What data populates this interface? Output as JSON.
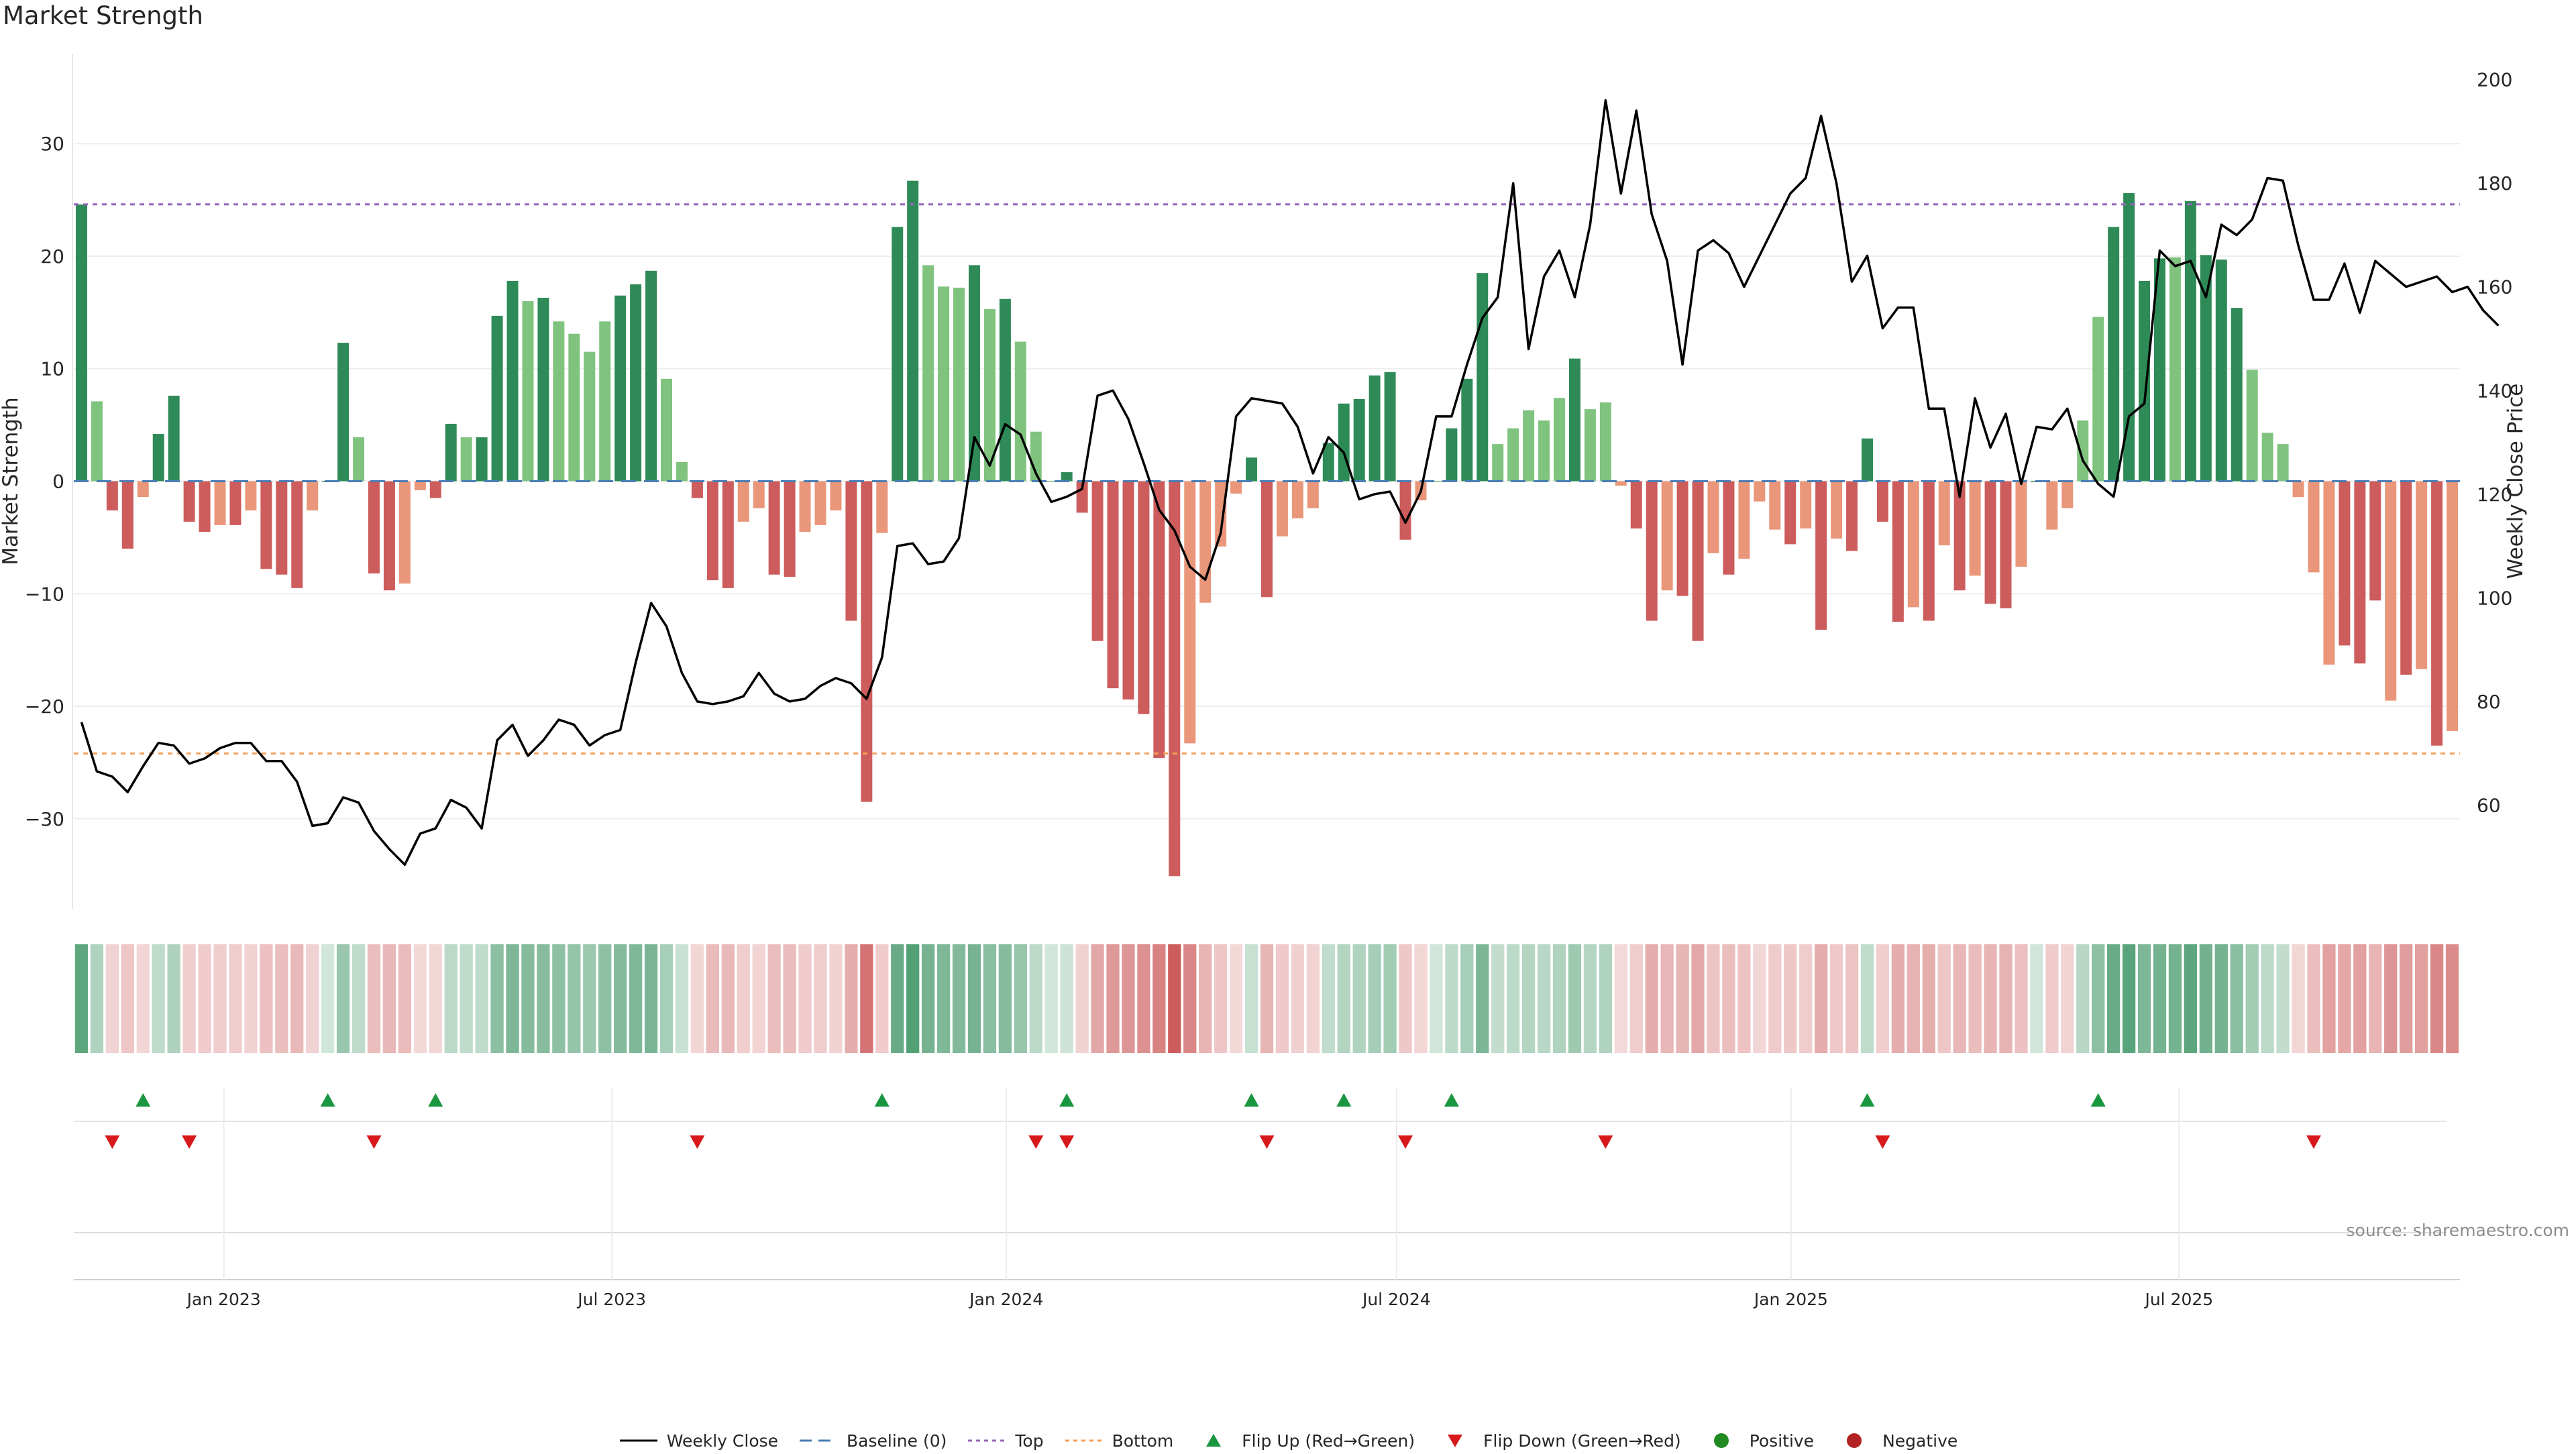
{
  "title": "Market Strength",
  "source": "source: sharemaestro.com",
  "colors": {
    "pos_strong": "#2e8b57",
    "pos_light": "#7fc37f",
    "neg_strong": "#cd5c5c",
    "neg_light": "#e9967a",
    "price_line": "#000000",
    "baseline": "#4a7db5",
    "top": "#9467bd",
    "bottom": "#f5a05a",
    "flip_up": "#1a9641",
    "flip_down": "#d7191c",
    "positive": "#228b22",
    "negative": "#b22222"
  },
  "legend": [
    {
      "label": "Weekly Close",
      "kind": "line"
    },
    {
      "label": "Baseline (0)",
      "kind": "baseline"
    },
    {
      "label": "Top",
      "kind": "top"
    },
    {
      "label": "Bottom",
      "kind": "bottom"
    },
    {
      "label": "Flip Up (Red→Green)",
      "kind": "up"
    },
    {
      "label": "Flip Down (Green→Red)",
      "kind": "down"
    },
    {
      "label": "Positive",
      "kind": "pos"
    },
    {
      "label": "Negative",
      "kind": "neg"
    }
  ],
  "chart_data": {
    "type": "bar",
    "title": "Market Strength",
    "ylabel": "Market Strength",
    "y2label": "Weekly Close Price",
    "ylim": [
      -38,
      38
    ],
    "y2lim": [
      40,
      205
    ],
    "yticks": [
      -30,
      -20,
      -10,
      0,
      10,
      20,
      30
    ],
    "yticklabels": [
      "−30",
      "−20",
      "−10",
      "0",
      "10",
      "20",
      "30"
    ],
    "y2ticks": [
      60,
      80,
      100,
      120,
      140,
      160,
      180,
      200
    ],
    "x_start": "2022-10-23",
    "x_end": "2025-11-09",
    "xticks": [
      "2023-01-01",
      "2023-07-01",
      "2024-01-01",
      "2024-07-01",
      "2025-01-01",
      "2025-07-01"
    ],
    "xticklabels": [
      "Jan 2023",
      "Jul 2023",
      "Jan 2024",
      "Jul 2024",
      "Jan 2025",
      "Jul 2025"
    ],
    "top_level": 24.6,
    "bottom_level": -24.2,
    "baseline": 0,
    "strength": [
      24.6,
      7.1,
      -2.6,
      -6,
      -1.4,
      4.2,
      7.6,
      -3.6,
      -4.5,
      -3.9,
      -3.9,
      -2.6,
      -7.8,
      -8.3,
      -9.5,
      -2.6,
      0,
      12.3,
      3.9,
      -8.2,
      -9.7,
      -9.1,
      -0.8,
      -1.5,
      5.1,
      3.9,
      3.9,
      14.7,
      17.8,
      16,
      16.3,
      14.2,
      13.1,
      11.5,
      14.2,
      16.5,
      17.5,
      18.7,
      9.1,
      1.7,
      -1.5,
      -8.8,
      -9.5,
      -3.6,
      -2.4,
      -8.3,
      -8.5,
      -4.5,
      -3.9,
      -2.6,
      -12.4,
      -28.5,
      -4.6,
      22.6,
      26.7,
      19.2,
      17.3,
      17.2,
      19.2,
      15.3,
      16.2,
      12.4,
      4.4,
      0,
      0.8,
      -2.8,
      -14.2,
      -18.4,
      -19.4,
      -20.7,
      -24.6,
      -35.1,
      -23.3,
      -10.8,
      -5.8,
      -1.1,
      2.1,
      -10.3,
      -4.9,
      -3.3,
      -2.4,
      3.4,
      6.9,
      7.3,
      9.4,
      9.7,
      -5.2,
      -1.7,
      0,
      4.7,
      9.1,
      18.5,
      3.3,
      4.7,
      6.3,
      5.4,
      7.4,
      10.9,
      6.4,
      7,
      -0.4,
      -4.2,
      -12.4,
      -9.7,
      -10.2,
      -14.2,
      -6.4,
      -8.3,
      -6.9,
      -1.8,
      -4.3,
      -5.6,
      -4.2,
      -13.2,
      -5.1,
      -6.2,
      3.8,
      -3.6,
      -12.5,
      -11.2,
      -12.4,
      -5.7,
      -9.7,
      -8.4,
      -10.9,
      -11.3,
      -7.6,
      0,
      -4.3,
      -2.4,
      5.4,
      14.6,
      22.6,
      25.6,
      17.8,
      19.8,
      19.9,
      24.9,
      20.1,
      19.7,
      15.4,
      9.9,
      4.3,
      3.3,
      -1.4,
      -8.1,
      -16.3,
      -14.6,
      -16.2,
      -10.6,
      -19.5,
      -17.2,
      -16.7,
      -23.5,
      -22.2
    ],
    "shade": [
      1,
      0,
      1,
      1,
      0,
      1,
      1,
      1,
      1,
      0,
      1,
      0,
      1,
      1,
      1,
      0,
      1,
      1,
      0,
      1,
      1,
      0,
      0,
      1,
      1,
      0,
      1,
      1,
      1,
      0,
      1,
      0,
      0,
      0,
      0,
      1,
      1,
      1,
      0,
      0,
      1,
      1,
      1,
      0,
      0,
      1,
      1,
      0,
      0,
      0,
      1,
      1,
      0,
      1,
      1,
      0,
      0,
      0,
      1,
      0,
      1,
      0,
      0,
      0,
      1,
      1,
      1,
      1,
      1,
      1,
      1,
      1,
      0,
      0,
      0,
      0,
      1,
      1,
      0,
      0,
      0,
      1,
      1,
      1,
      1,
      1,
      1,
      0,
      0,
      1,
      1,
      1,
      0,
      0,
      0,
      0,
      0,
      1,
      0,
      0,
      0,
      1,
      1,
      0,
      1,
      1,
      0,
      1,
      0,
      0,
      0,
      1,
      0,
      1,
      0,
      1,
      1,
      1,
      1,
      0,
      1,
      0,
      1,
      0,
      1,
      1,
      0,
      1,
      0,
      0,
      0,
      0,
      1,
      1,
      1,
      1,
      0,
      1,
      1,
      1,
      1,
      0,
      0,
      0,
      0,
      0,
      0,
      1,
      1,
      1,
      0,
      1,
      0,
      1,
      0,
      1,
      0,
      0
    ],
    "heat_strong": [
      false,
      false,
      false,
      false,
      false,
      false,
      false,
      false,
      false,
      false,
      false,
      false,
      false,
      false,
      false,
      false,
      false,
      false,
      false,
      false,
      false,
      false,
      false,
      false,
      false,
      false,
      false,
      false,
      false,
      false,
      false,
      false,
      false,
      false,
      false,
      false,
      false,
      false,
      false,
      false,
      false,
      false,
      false,
      false,
      false,
      false,
      false,
      false,
      false,
      false,
      false,
      false,
      false,
      false,
      false,
      false,
      false,
      false,
      false,
      false,
      false,
      false,
      false,
      false,
      false,
      false,
      false,
      false,
      false,
      false,
      false,
      false,
      false,
      false,
      false,
      false,
      false,
      false,
      false,
      false,
      false,
      false,
      false,
      false,
      false,
      false,
      false,
      false,
      false,
      false,
      false,
      false,
      false,
      false,
      false,
      false,
      false,
      false,
      false,
      false,
      false,
      false,
      false,
      false,
      false,
      false,
      false,
      false,
      false,
      false,
      false,
      false,
      false,
      false,
      false,
      false,
      false,
      false,
      false,
      false,
      false,
      false,
      false,
      false,
      false,
      false,
      false,
      false,
      false,
      false,
      false,
      false,
      false,
      false,
      false,
      false,
      false,
      false,
      false,
      false,
      false,
      false,
      false,
      false,
      false,
      false,
      false,
      false,
      false,
      false,
      false,
      false,
      false,
      false,
      false,
      false
    ],
    "price": [
      76,
      66.5,
      65.5,
      62.5,
      67.5,
      72,
      71.5,
      68,
      69,
      71,
      72,
      72,
      68.5,
      68.5,
      64.5,
      56,
      56.5,
      61.5,
      60.5,
      55,
      51.5,
      48.5,
      54.5,
      55.5,
      61,
      59.5,
      55.5,
      72.5,
      75.5,
      69.5,
      72.5,
      76.5,
      75.5,
      71.5,
      73.5,
      74.5,
      87.5,
      99,
      94.5,
      85.5,
      80,
      79.5,
      80,
      81,
      85.5,
      81.5,
      80,
      80.5,
      83,
      84.5,
      83.5,
      80.5,
      88.5,
      110,
      110.5,
      106.5,
      107,
      111.5,
      131,
      125.5,
      133.5,
      131.5,
      124,
      118.5,
      119.5,
      121,
      139,
      140,
      134.5,
      126,
      117,
      113,
      106,
      103.5,
      112.5,
      135,
      138.5,
      138,
      137.5,
      133,
      124,
      131,
      128,
      119,
      120,
      120.5,
      114.5,
      120.5,
      135,
      135,
      145,
      154,
      158,
      180,
      148,
      162,
      167,
      158,
      172,
      196,
      178,
      194,
      174,
      165,
      145,
      167,
      169,
      166.5,
      160,
      166,
      172,
      178,
      181,
      193,
      180,
      161,
      166,
      152,
      156,
      156,
      136.5,
      136.5,
      119.5,
      138.5,
      129,
      135.5,
      122,
      133,
      132.5,
      136.5,
      126.5,
      122,
      119.5,
      135,
      137.5,
      167,
      164,
      165,
      158,
      172,
      170,
      173,
      181,
      180.5,
      168,
      157.5,
      157.5,
      164.5,
      155,
      165,
      162.5,
      160,
      161,
      162,
      159,
      160,
      155.5,
      152.5
    ],
    "flip_up": [
      4,
      16,
      23,
      52,
      64,
      76,
      82,
      89,
      116,
      131
    ],
    "flip_down": [
      2,
      7,
      19,
      40,
      62,
      64,
      77,
      86,
      99,
      117,
      145
    ],
    "dates_fmt": "weekly"
  }
}
